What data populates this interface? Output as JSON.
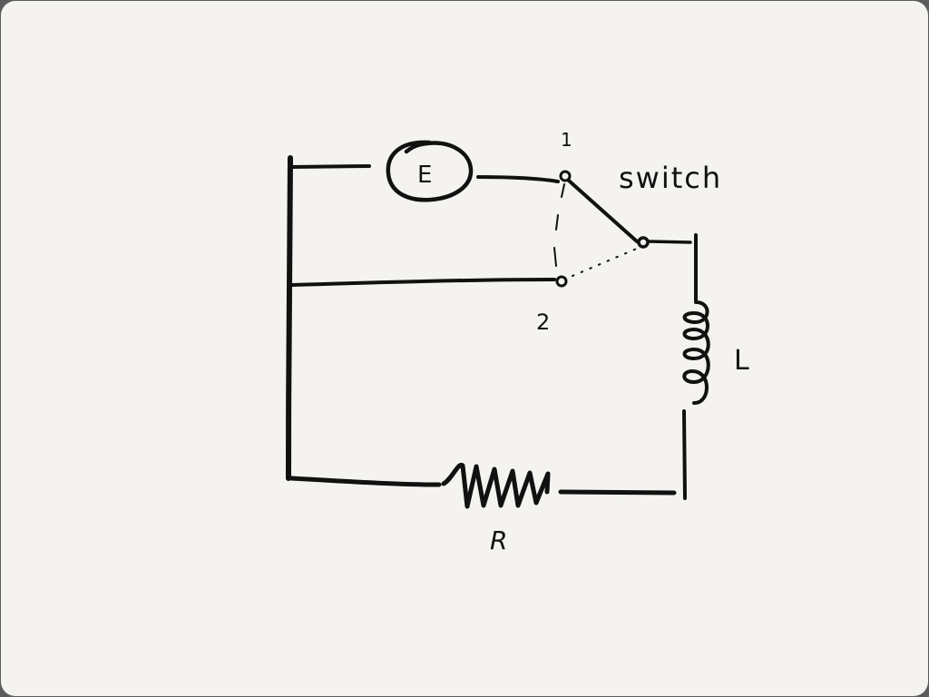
{
  "diagram": {
    "source_symbol": "E",
    "switch_label": "switch",
    "terminal_1": "1",
    "terminal_2": "2",
    "inductor_label": "L",
    "resistor_label": "R"
  },
  "colors": {
    "paper": "#f4f3ef",
    "ink": "#111111"
  }
}
